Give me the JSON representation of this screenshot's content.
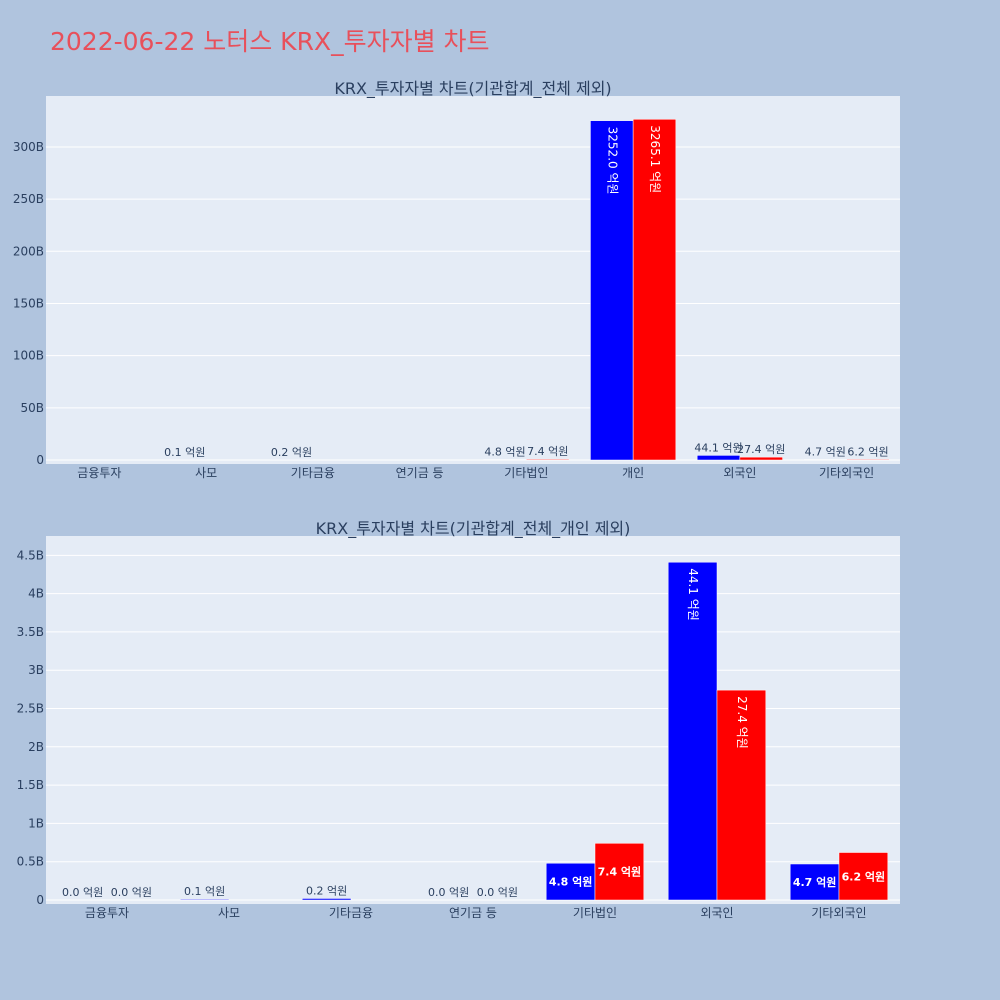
{
  "title": "2022-06-22 노터스 KRX_투자자별 차트",
  "colors": {
    "page_bg": "#b0c4de",
    "plot_bg": "#e5ecf6",
    "title": "#e8505b",
    "series_1": "#0000ff",
    "series_2": "#ff0000",
    "axis_text": "#2a3f5f"
  },
  "chart_data": [
    {
      "type": "bar",
      "title": "KRX_투자자별 차트(기관합계_전체 제외)",
      "categories": [
        "금융투자",
        "사모",
        "기타금융",
        "연기금 등",
        "기타법인",
        "개인",
        "외국인",
        "기타외국인"
      ],
      "series": [
        {
          "values": [
            0,
            10000000,
            20000000,
            0,
            480000000,
            325200000000,
            4410000000,
            470000000
          ],
          "labels": [
            "",
            "0.1 억원",
            "0.2 억원",
            "",
            "4.8 억원",
            "3252.0 억원",
            "44.1 억원",
            "4.7 억원"
          ]
        },
        {
          "values": [
            0,
            0,
            0,
            0,
            740000000,
            326510000000,
            2740000000,
            620000000
          ],
          "labels": [
            "",
            "",
            "",
            "",
            "7.4 억원",
            "3265.1 억원",
            "27.4 억원",
            "6.2 억원"
          ]
        }
      ],
      "ylim": [
        0,
        345000000000
      ],
      "yticks": [
        0,
        50000000000,
        100000000000,
        150000000000,
        200000000000,
        250000000000,
        300000000000
      ],
      "ytick_labels": [
        "0",
        "50B",
        "100B",
        "150B",
        "200B",
        "250B",
        "300B"
      ],
      "grid": true
    },
    {
      "type": "bar",
      "title": "KRX_투자자별 차트(기관합계_전체_개인 제외)",
      "categories": [
        "금융투자",
        "사모",
        "기타금융",
        "연기금 등",
        "기타법인",
        "외국인",
        "기타외국인"
      ],
      "series": [
        {
          "values": [
            0,
            10000000,
            20000000,
            0,
            480000000,
            4410000000,
            470000000
          ],
          "labels": [
            "0.0 억원",
            "0.1 억원",
            "0.2 억원",
            "0.0 억원",
            "4.8 억원",
            "44.1 억원",
            "4.7 억원"
          ]
        },
        {
          "values": [
            0,
            0,
            0,
            0,
            740000000,
            2740000000,
            620000000
          ],
          "labels": [
            "0.0 억원",
            "",
            "",
            "0.0 억원",
            "7.4 억원",
            "27.4 억원",
            "6.2 억원"
          ]
        }
      ],
      "ylim": [
        0,
        4700000000
      ],
      "yticks": [
        0,
        500000000,
        1000000000,
        1500000000,
        2000000000,
        2500000000,
        3000000000,
        3500000000,
        4000000000,
        4500000000
      ],
      "ytick_labels": [
        "0",
        "0.5B",
        "1B",
        "1.5B",
        "2B",
        "2.5B",
        "3B",
        "3.5B",
        "4B",
        "4.5B"
      ],
      "grid": true
    }
  ]
}
